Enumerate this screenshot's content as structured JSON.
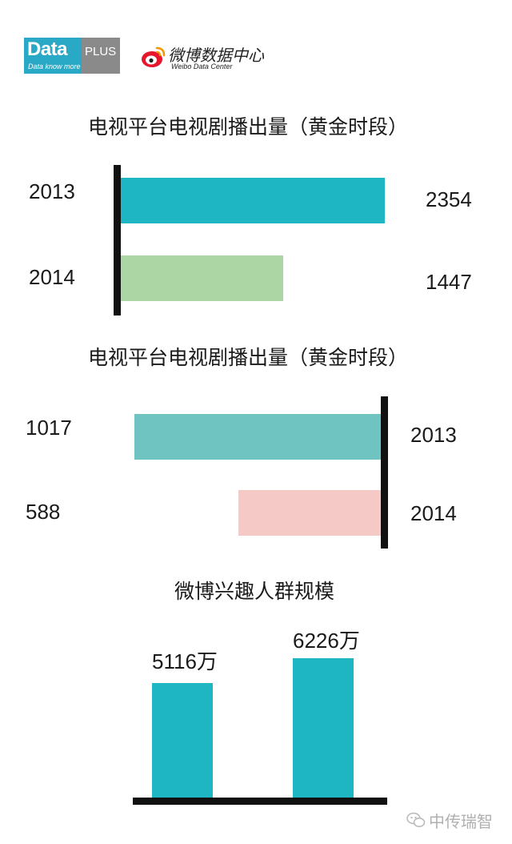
{
  "header": {
    "dataplus_word": "Data",
    "dataplus_plus": "PLUS",
    "dataplus_tagline": "Data know more",
    "weibo_name": "微博数据中心",
    "weibo_en": "Weibo Data Center"
  },
  "chart_data": [
    {
      "type": "bar",
      "orientation": "horizontal",
      "title": "电视平台电视剧播出量（黄金时段）",
      "categories": [
        "2013",
        "2014"
      ],
      "values": [
        2354,
        1447
      ],
      "xlim": [
        0,
        2600
      ],
      "colors": [
        "#1fb6c4",
        "#acd7a5"
      ],
      "grid": false,
      "legend": "none"
    },
    {
      "type": "bar",
      "orientation": "horizontal",
      "title": "电视平台电视剧播出量（黄金时段）",
      "categories": [
        "2013",
        "2014"
      ],
      "values": [
        1017,
        588
      ],
      "xlim": [
        0,
        1017
      ],
      "direction": "right-to-left",
      "colors": [
        "#6fc4c2",
        "#f5c9c5"
      ],
      "grid": false,
      "legend": "none"
    },
    {
      "type": "bar",
      "orientation": "vertical",
      "title": "微博兴趣人群规模",
      "categories": [
        "",
        ""
      ],
      "values": [
        5116,
        6226
      ],
      "value_labels": [
        "5116万",
        "6226万"
      ],
      "unit": "万",
      "ylim": [
        0,
        7400
      ],
      "colors": [
        "#1fb6c4",
        "#1fb6c4"
      ],
      "grid": false,
      "legend": "none"
    }
  ],
  "watermark": "中传瑞智"
}
